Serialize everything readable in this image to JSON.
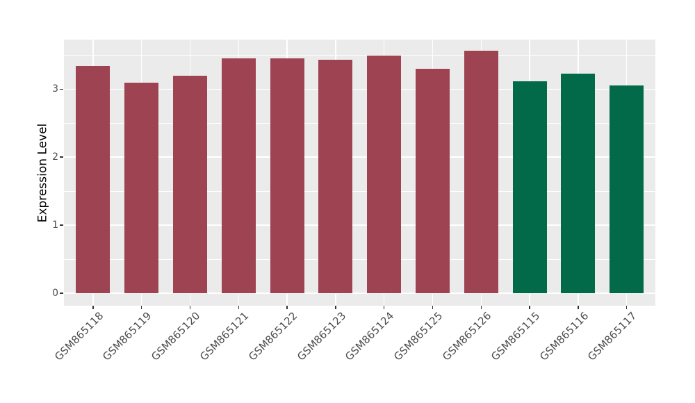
{
  "chart_data": {
    "type": "bar",
    "title": "",
    "xlabel": "",
    "ylabel": "Expression Level",
    "categories": [
      "GSM865118",
      "GSM865119",
      "GSM865120",
      "GSM865121",
      "GSM865122",
      "GSM865123",
      "GSM865124",
      "GSM865125",
      "GSM865126",
      "GSM865115",
      "GSM865116",
      "GSM865117"
    ],
    "values": [
      3.34,
      3.1,
      3.2,
      3.45,
      3.45,
      3.43,
      3.49,
      3.3,
      3.56,
      3.12,
      3.23,
      3.05
    ],
    "bar_colors": [
      "#9E4352",
      "#9E4352",
      "#9E4352",
      "#9E4352",
      "#9E4352",
      "#9E4352",
      "#9E4352",
      "#9E4352",
      "#9E4352",
      "#026A48",
      "#026A48",
      "#026A48"
    ],
    "groups": [
      {
        "name": "maroon-group",
        "color": "#9E4352",
        "categories": [
          "GSM865118",
          "GSM865119",
          "GSM865120",
          "GSM865121",
          "GSM865122",
          "GSM865123",
          "GSM865124",
          "GSM865125",
          "GSM865126"
        ]
      },
      {
        "name": "green-group",
        "color": "#026A48",
        "categories": [
          "GSM865115",
          "GSM865116",
          "GSM865117"
        ]
      }
    ],
    "y_ticks": [
      0,
      1,
      2,
      3
    ],
    "y_minor_ticks": [
      0.5,
      1.5,
      2.5,
      3.5
    ],
    "ylim": [
      -0.18,
      3.73
    ],
    "x_tick_rotation_deg": 45,
    "legend_position": "none",
    "grid": {
      "horizontal_major": true,
      "horizontal_minor": true,
      "vertical_major": true,
      "vertical_minor": false
    },
    "style": {
      "panel_background": "#EBEBEB",
      "outer_background": "#FFFFFF",
      "gridline_color": "#FFFFFF",
      "tick_mark_color": "#333333",
      "tick_label_color": "#4D4D4D",
      "axis_title_color": "#000000"
    }
  }
}
